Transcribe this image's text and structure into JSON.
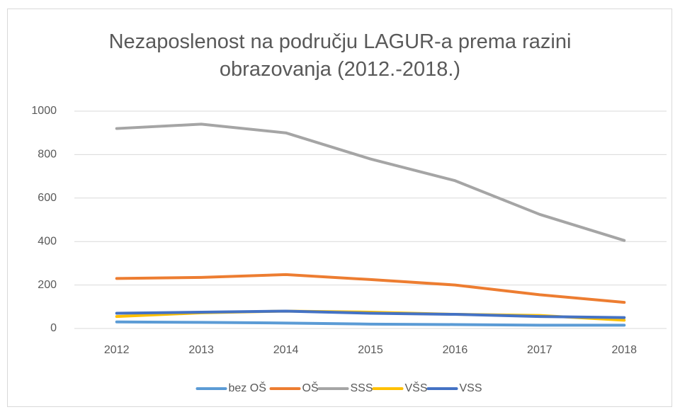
{
  "chart_data": {
    "type": "line",
    "title": "Nezaposlenost na području LAGUR-a prema razini obrazovanja (2012.-2018.)",
    "categories": [
      "2012",
      "2013",
      "2014",
      "2015",
      "2016",
      "2017",
      "2018"
    ],
    "series": [
      {
        "name": "bez OŠ",
        "color": "#5b9bd5",
        "values": [
          30,
          28,
          25,
          20,
          18,
          15,
          15
        ]
      },
      {
        "name": "OŠ",
        "color": "#ed7d31",
        "values": [
          230,
          235,
          248,
          225,
          200,
          155,
          120
        ]
      },
      {
        "name": "SSS",
        "color": "#a5a5a5",
        "values": [
          920,
          940,
          900,
          780,
          680,
          525,
          405
        ]
      },
      {
        "name": "VŠS",
        "color": "#ffc000",
        "values": [
          55,
          72,
          80,
          75,
          65,
          60,
          38
        ]
      },
      {
        "name": "VSS",
        "color": "#4472c4",
        "values": [
          70,
          75,
          80,
          70,
          65,
          55,
          50
        ]
      }
    ],
    "ylim": [
      0,
      1000
    ],
    "yticks": [
      0,
      200,
      400,
      600,
      800,
      1000
    ],
    "grid": true,
    "legend": "bottom"
  }
}
